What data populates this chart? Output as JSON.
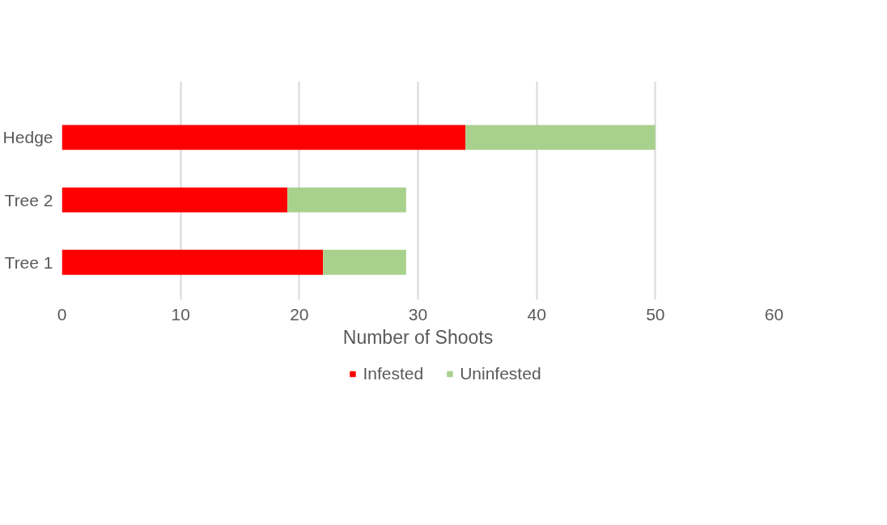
{
  "chart_data": {
    "type": "bar",
    "orientation": "horizontal",
    "stacked": true,
    "categories": [
      "Hedge",
      "Tree 2",
      "Tree 1"
    ],
    "series": [
      {
        "name": "Infested",
        "color": "#ff0000",
        "values": [
          34,
          19,
          22
        ]
      },
      {
        "name": "Uninfested",
        "color": "#a9d18e",
        "values": [
          16,
          10,
          7
        ]
      }
    ],
    "xlabel": "Number of Shoots",
    "xlim": [
      0,
      60
    ],
    "xticks": [
      0,
      10,
      20,
      30,
      40,
      50,
      60
    ],
    "grid": "x",
    "legend": "bottom"
  }
}
